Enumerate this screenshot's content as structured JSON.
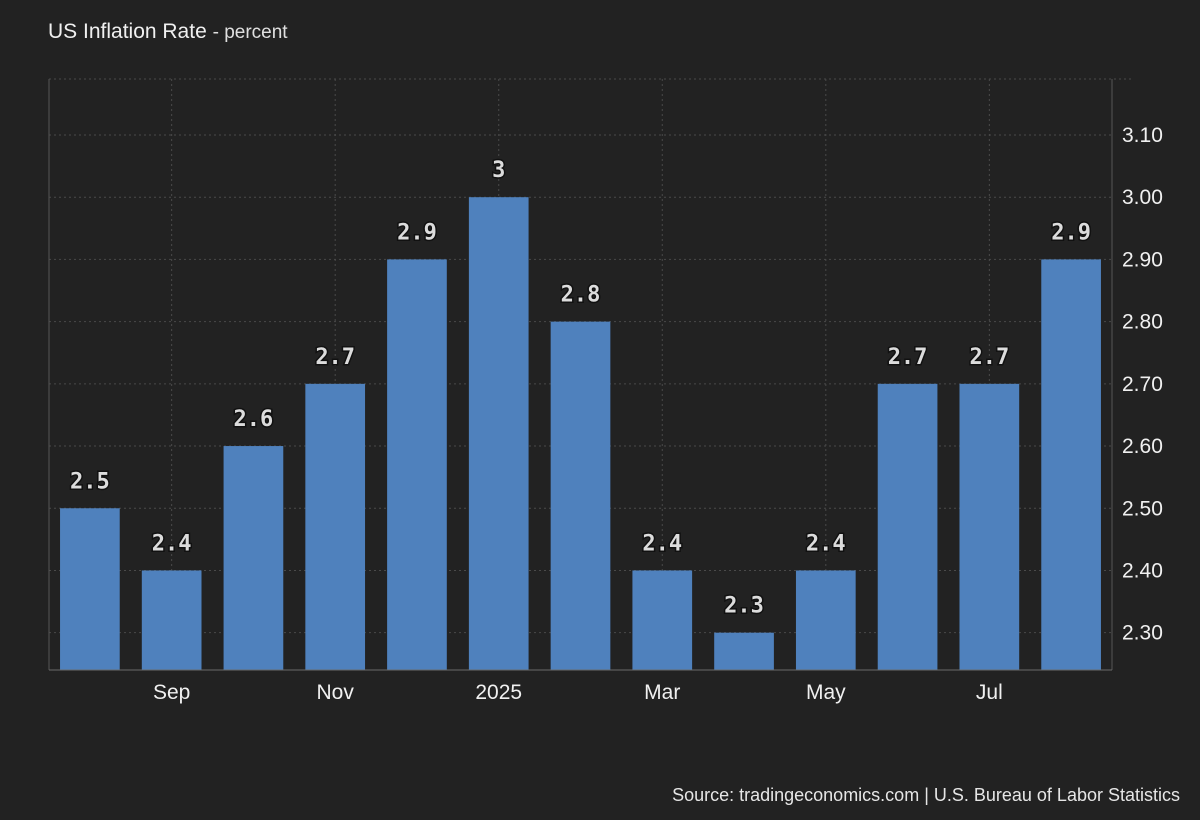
{
  "header": {
    "title": "US Inflation Rate",
    "unit": "- percent"
  },
  "footer": {
    "source": "Source: tradingeconomics.com | U.S. Bureau of Labor Statistics"
  },
  "colors": {
    "background": "#222222",
    "bar": "#4f81bd",
    "grid": "#4a4a4a",
    "text": "#f0f0f0"
  },
  "chart_data": {
    "type": "bar",
    "title": "US Inflation Rate",
    "ylabel": "percent",
    "values": [
      2.5,
      2.4,
      2.6,
      2.7,
      2.9,
      3.0,
      2.8,
      2.4,
      2.3,
      2.4,
      2.7,
      2.7,
      2.9
    ],
    "data_labels": [
      "2.5",
      "2.4",
      "2.6",
      "2.7",
      "2.9",
      "3",
      "2.8",
      "2.4",
      "2.3",
      "2.4",
      "2.7",
      "2.7",
      "2.9"
    ],
    "x_tick_labels": [
      {
        "label": "Sep",
        "index": 1
      },
      {
        "label": "Nov",
        "index": 3
      },
      {
        "label": "2025",
        "index": 5
      },
      {
        "label": "Mar",
        "index": 7
      },
      {
        "label": "May",
        "index": 9
      },
      {
        "label": "Jul",
        "index": 11
      }
    ],
    "y_ticks": [
      "2.30",
      "2.40",
      "2.50",
      "2.60",
      "2.70",
      "2.80",
      "2.90",
      "3.00",
      "3.10"
    ],
    "ylim": [
      2.24,
      3.19
    ],
    "y_axis_side": "right",
    "grid": true,
    "legend": "none"
  }
}
